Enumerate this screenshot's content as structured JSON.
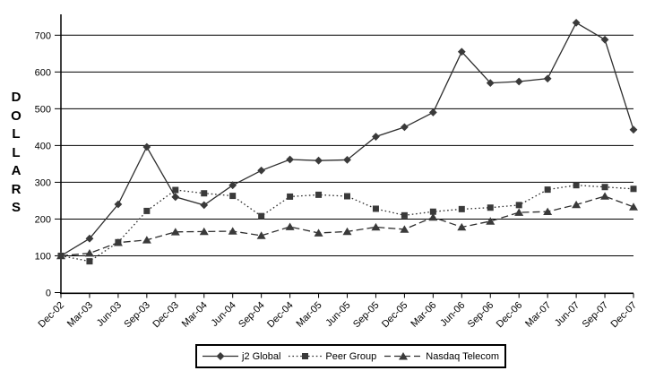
{
  "chart_data": {
    "type": "line",
    "title": "",
    "xlabel": "",
    "ylabel": "DOLLARS",
    "ylim": [
      0,
      700
    ],
    "yticks": [
      0,
      100,
      200,
      300,
      400,
      500,
      600,
      700
    ],
    "grid": "horizontal",
    "legend_position": "bottom-center",
    "categories": [
      "Dec-02",
      "Mar-03",
      "Jun-03",
      "Sep-03",
      "Dec-03",
      "Mar-04",
      "Jun-04",
      "Sep-04",
      "Dec-04",
      "Mar-05",
      "Jun-05",
      "Sep-05",
      "Dec-05",
      "Mar-06",
      "Jun-06",
      "Sep-06",
      "Dec-06",
      "Mar-07",
      "Jun-07",
      "Sep-07",
      "Dec-07"
    ],
    "series": [
      {
        "name": "j2 Global",
        "marker": "diamond",
        "line_style": "solid",
        "values": [
          100,
          147,
          240,
          396,
          260,
          238,
          292,
          332,
          362,
          359,
          361,
          424,
          450,
          490,
          655,
          570,
          574,
          582,
          734,
          688,
          443
        ]
      },
      {
        "name": "Peer Group",
        "marker": "square",
        "line_style": "dotted",
        "values": [
          100,
          85,
          137,
          222,
          279,
          270,
          263,
          208,
          261,
          266,
          262,
          228,
          210,
          220,
          227,
          231,
          238,
          280,
          292,
          287,
          282
        ]
      },
      {
        "name": "Nasdaq Telecom",
        "marker": "triangle",
        "line_style": "dashed",
        "values": [
          100,
          107,
          136,
          143,
          165,
          166,
          167,
          155,
          179,
          162,
          166,
          178,
          172,
          205,
          178,
          194,
          218,
          220,
          239,
          262,
          233
        ]
      }
    ],
    "colors": {
      "line": "#2e2e2e",
      "marker": "#3a3a3a",
      "text": "#000000",
      "background": "#ffffff"
    }
  }
}
